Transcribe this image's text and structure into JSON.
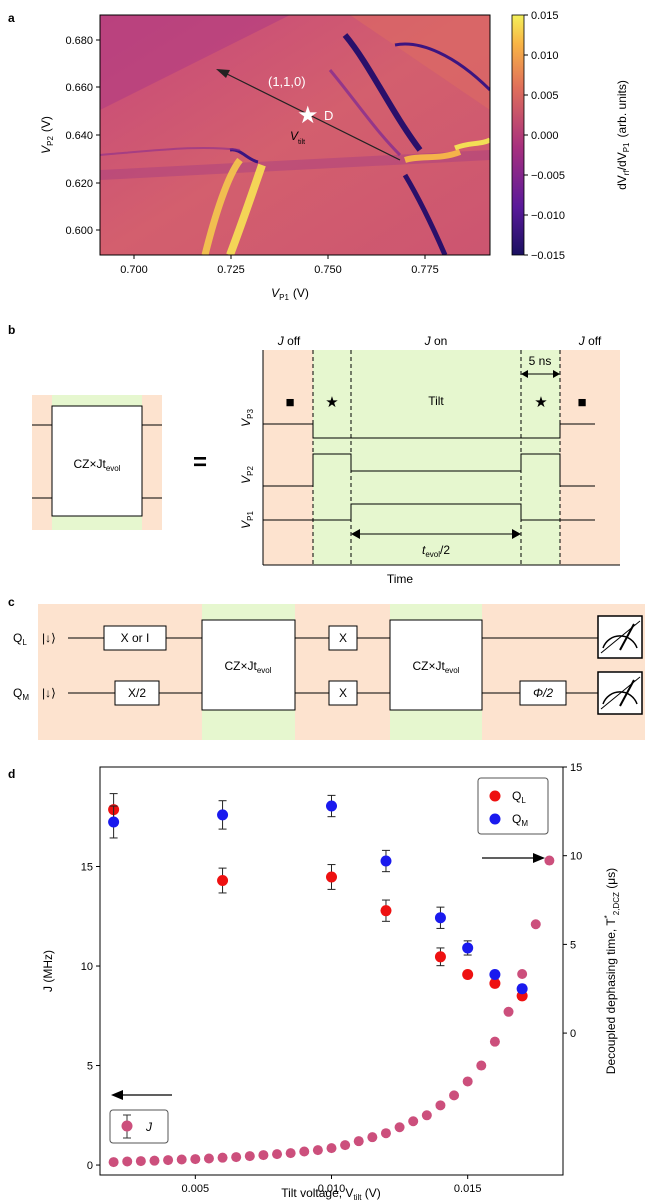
{
  "colors": {
    "orange_bg": "#fde3cf",
    "green_bg": "#e6f7cf",
    "q_l": "#ee1111",
    "q_m": "#1a1aee",
    "j": "#cc4f7c"
  },
  "panel_a": {
    "letter": "a",
    "xlabel_main": "V",
    "xlabel_sub": "P1",
    "xlabel_unit": "(V)",
    "ylabel_main": "V",
    "ylabel_sub": "P2",
    "ylabel_unit": "(V)",
    "xticks": [
      "0.700",
      "0.725",
      "0.750",
      "0.775"
    ],
    "yticks": [
      "0.600",
      "0.620",
      "0.640",
      "0.660",
      "0.680"
    ],
    "annotation": "(1,1,0)",
    "point_label": "D",
    "arrow_label_main": "V",
    "arrow_label_sub": "tilt",
    "colorbar_ticks": [
      "0.015",
      "0.010",
      "0.005",
      "0.000",
      "−0.005",
      "−0.010",
      "−0.015"
    ],
    "colorbar_label_a": "dV",
    "colorbar_label_a_sub": "rf",
    "colorbar_label_b": "/dV",
    "colorbar_label_b_sub": "P1",
    "colorbar_label_unit": "(arb. units)"
  },
  "panel_b": {
    "letter": "b",
    "gate_main": "CZ×Jt",
    "gate_sub": "evol",
    "equals": "=",
    "j_off_left": "off",
    "j_on": "on",
    "j_off_right": "off",
    "j_letter": "J",
    "duration": "5 ns",
    "tilt": "Tilt",
    "star": "★",
    "square": "■",
    "t_main": "t",
    "t_sub": "evol",
    "t_suffix": "/2",
    "time_label": "Time",
    "v_labels": [
      {
        "main": "V",
        "sub": "P3"
      },
      {
        "main": "V",
        "sub": "P2"
      },
      {
        "main": "V",
        "sub": "P1"
      }
    ]
  },
  "panel_c": {
    "letter": "c",
    "q_l_main": "Q",
    "q_l_sub": "L",
    "q_m_main": "Q",
    "q_m_sub": "M",
    "ket": "|↓⟩",
    "gate_x_or_i": "X or I",
    "gate_x_half": "X/2",
    "gate_x": "X",
    "gate_cz_main": "CZ×Jt",
    "gate_cz_sub": "evol",
    "gate_phi": "Φ/2"
  },
  "panel_d": {
    "letter": "d",
    "xlabel": "Tilt voltage, V",
    "xlabel_sub": "tilt",
    "xlabel_unit": " (V)",
    "ylabel_left": "J (MHz)",
    "ylabel_right_a": "Decoupled dephasing time, T",
    "ylabel_right_sup": "*",
    "ylabel_right_sub": "2,DCZ",
    "ylabel_right_unit": " (μs)",
    "xticks": [
      "0.005",
      "0.010",
      "0.015"
    ],
    "yticks_left": [
      "0",
      "5",
      "10",
      "15"
    ],
    "yticks_right": [
      "0",
      "5",
      "10",
      "15"
    ],
    "legend_q_l_main": "Q",
    "legend_q_l_sub": "L",
    "legend_q_m_main": "Q",
    "legend_q_m_sub": "M",
    "legend_j": "J"
  },
  "chart_data": {
    "type": "scatter",
    "x": [
      0.002,
      0.006,
      0.01,
      0.012,
      0.014,
      0.015,
      0.016,
      0.017
    ],
    "series": [
      {
        "name": "Q_L",
        "axis": "right",
        "values": [
          12.6,
          8.6,
          8.8,
          6.9,
          4.3,
          3.3,
          2.8,
          2.1
        ],
        "err": [
          0.9,
          0.7,
          0.7,
          0.6,
          0.5,
          0.2,
          0.2,
          0.2
        ]
      },
      {
        "name": "Q_M",
        "axis": "right",
        "values": [
          11.9,
          12.3,
          12.8,
          9.7,
          6.5,
          4.8,
          3.3,
          2.5
        ],
        "err": [
          0.9,
          0.8,
          0.6,
          0.6,
          0.6,
          0.4,
          0.2,
          0.2
        ]
      },
      {
        "name": "J",
        "axis": "left",
        "x": [
          0.002,
          0.0025,
          0.003,
          0.0035,
          0.004,
          0.0045,
          0.005,
          0.0055,
          0.006,
          0.0065,
          0.007,
          0.0075,
          0.008,
          0.0085,
          0.009,
          0.0095,
          0.01,
          0.0105,
          0.011,
          0.0115,
          0.012,
          0.0125,
          0.013,
          0.0135,
          0.014,
          0.0145,
          0.015,
          0.0155,
          0.016,
          0.0165,
          0.017,
          0.0175,
          0.018
        ],
        "values": [
          0.15,
          0.18,
          0.2,
          0.22,
          0.25,
          0.28,
          0.3,
          0.33,
          0.37,
          0.4,
          0.45,
          0.5,
          0.55,
          0.6,
          0.68,
          0.75,
          0.85,
          1.0,
          1.2,
          1.4,
          1.6,
          1.9,
          2.2,
          2.5,
          3.0,
          3.5,
          4.2,
          5.0,
          6.2,
          7.7,
          9.6,
          12.1,
          15.3
        ]
      }
    ],
    "xlim": [
      0.0015,
      0.0185
    ],
    "ylim_left": [
      -0.5,
      20.0
    ],
    "ylim_right": [
      -8.0,
      15.0
    ]
  }
}
